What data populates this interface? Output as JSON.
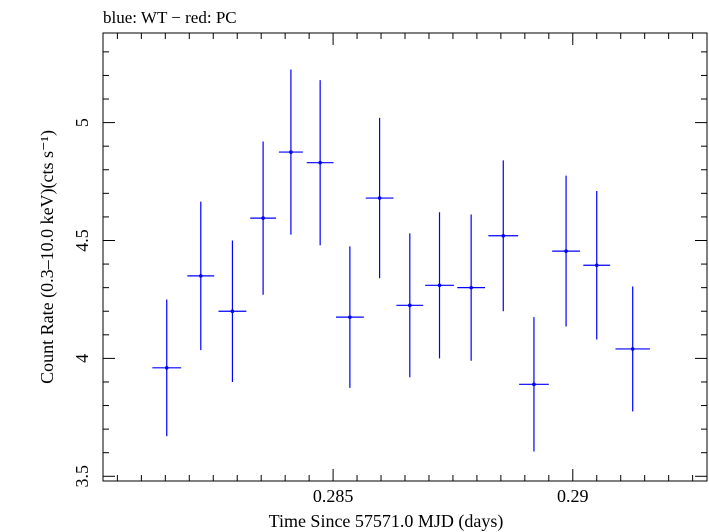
{
  "chart_data": {
    "type": "scatter",
    "title": "blue: WT − red: PC",
    "xlabel": "Time Since 57571.0 MJD (days)",
    "ylabel": "Count Rate (0.3–10.0 keV)(cts s⁻¹)",
    "xlim": [
      0.2802,
      0.2928
    ],
    "ylim": [
      3.48,
      5.38
    ],
    "xticks": [
      0.285,
      0.29
    ],
    "xtick_labels": [
      "0.285",
      "0.29"
    ],
    "yticks": [
      3.5,
      4,
      4.5,
      5
    ],
    "ytick_labels": [
      "3.5",
      "4",
      "4.5",
      "5"
    ],
    "grid": false,
    "series": [
      {
        "color": "#0000ff",
        "points": [
          {
            "x": 0.28153,
            "xerr": 0.0003,
            "y": 3.96,
            "yerr": 0.29
          },
          {
            "x": 0.28224,
            "xerr": 0.00028,
            "y": 4.35,
            "yerr": 0.315
          },
          {
            "x": 0.2829,
            "xerr": 0.00029,
            "y": 4.2,
            "yerr": 0.3
          },
          {
            "x": 0.28354,
            "xerr": 0.00027,
            "y": 4.595,
            "yerr": 0.325
          },
          {
            "x": 0.28412,
            "xerr": 0.00025,
            "y": 4.875,
            "yerr": 0.35
          },
          {
            "x": 0.28473,
            "xerr": 0.00028,
            "y": 4.83,
            "yerr": 0.35
          },
          {
            "x": 0.28535,
            "xerr": 0.00029,
            "y": 4.175,
            "yerr": 0.3
          },
          {
            "x": 0.28597,
            "xerr": 0.00029,
            "y": 4.68,
            "yerr": 0.34
          },
          {
            "x": 0.2866,
            "xerr": 0.00028,
            "y": 4.225,
            "yerr": 0.305
          },
          {
            "x": 0.28722,
            "xerr": 0.0003,
            "y": 4.31,
            "yerr": 0.31
          },
          {
            "x": 0.28788,
            "xerr": 0.00029,
            "y": 4.3,
            "yerr": 0.31
          },
          {
            "x": 0.28855,
            "xerr": 0.00031,
            "y": 4.52,
            "yerr": 0.32
          },
          {
            "x": 0.28919,
            "xerr": 0.00031,
            "y": 3.89,
            "yerr": 0.285
          },
          {
            "x": 0.28986,
            "xerr": 0.00029,
            "y": 4.455,
            "yerr": 0.32
          },
          {
            "x": 0.2905,
            "xerr": 0.00028,
            "y": 4.395,
            "yerr": 0.315
          },
          {
            "x": 0.29125,
            "xerr": 0.00036,
            "y": 4.04,
            "yerr": 0.265
          }
        ]
      }
    ]
  }
}
